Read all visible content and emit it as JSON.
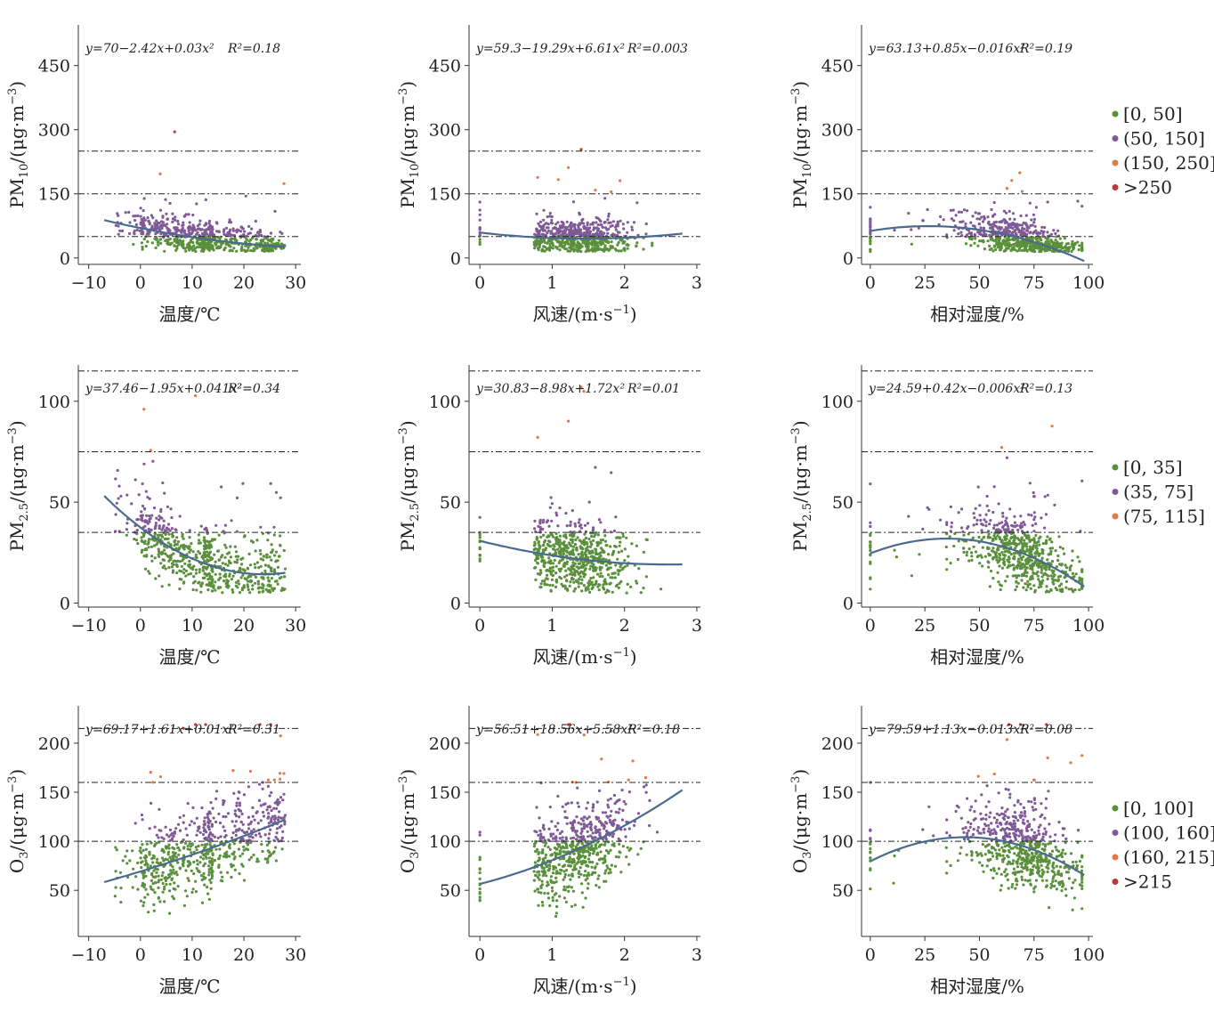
{
  "colors": {
    "green": "#5a8f3c",
    "purple": "#7f5a96",
    "orange": "#dd7a45",
    "red": "#b83a30",
    "fit": "#4a6a8f",
    "axis": "#333333"
  },
  "chart_data": {
    "type": "scatter",
    "rows": [
      {
        "pollutant": "PM10",
        "ylabel_main": "PM",
        "ylabel_sub": "10",
        "ylabel_unit": "/(μg·m",
        "ylabel_sup": "−3",
        "ylabel_close": ")",
        "ylim": [
          -15,
          545
        ],
        "yticks": [
          0,
          150,
          300,
          450
        ],
        "thresholds": [
          50,
          150,
          250
        ],
        "legend": [
          {
            "label": "[0, 50]",
            "color": "#5a8f3c"
          },
          {
            "label": "(50, 150]",
            "color": "#7f5a96"
          },
          {
            "label": "(150, 250]",
            "color": "#dd7a45"
          },
          {
            "label": ">250",
            "color": "#b83a30"
          }
        ],
        "panels": [
          {
            "var": "temp",
            "equation": "y=70−2.42x+0.03x²",
            "r2": "R²=0.18",
            "fit": [
              70,
              -2.42,
              0.03
            ]
          },
          {
            "var": "wind",
            "equation": "y=59.3−19.29x+6.61x²",
            "r2": "R²=0.003",
            "fit": [
              59.3,
              -19.29,
              6.61
            ]
          },
          {
            "var": "rh",
            "equation": "y=63.13+0.85x−0.016x²",
            "r2": "R²=0.19",
            "fit": [
              63.13,
              0.85,
              -0.016
            ]
          }
        ]
      },
      {
        "pollutant": "PM2.5",
        "ylabel_main": "PM",
        "ylabel_sub": "2.5",
        "ylabel_unit": "/(μg·m",
        "ylabel_sup": "−3",
        "ylabel_close": ")",
        "ylim": [
          -2,
          118
        ],
        "yticks": [
          0,
          50,
          100
        ],
        "thresholds": [
          35,
          75,
          115
        ],
        "legend": [
          {
            "label": "[0, 35]",
            "color": "#5a8f3c"
          },
          {
            "label": "(35, 75]",
            "color": "#7f5a96"
          },
          {
            "label": "(75, 115]",
            "color": "#dd7a45"
          }
        ],
        "panels": [
          {
            "var": "temp",
            "equation": "y=37.46−1.95x+0.041x²",
            "r2": "R²=0.34",
            "fit": [
              37.46,
              -1.95,
              0.041
            ]
          },
          {
            "var": "wind",
            "equation": "y=30.83−8.98x+1.72x²",
            "r2": "R²=0.01",
            "fit": [
              30.83,
              -8.98,
              1.72
            ]
          },
          {
            "var": "rh",
            "equation": "y=24.59+0.42x−0.006x²",
            "r2": "R²=0.13",
            "fit": [
              24.59,
              0.42,
              -0.006
            ]
          }
        ]
      },
      {
        "pollutant": "O3",
        "ylabel_main": "O",
        "ylabel_sub": "3",
        "ylabel_unit": "/(μg·m",
        "ylabel_sup": "−3",
        "ylabel_close": ")",
        "ylim": [
          3,
          238
        ],
        "yticks": [
          50,
          100,
          150,
          200
        ],
        "thresholds": [
          100,
          160,
          215
        ],
        "legend": [
          {
            "label": "[0, 100]",
            "color": "#5a8f3c"
          },
          {
            "label": "(100, 160]",
            "color": "#7f5a96"
          },
          {
            "label": "(160, 215]",
            "color": "#dd7a45"
          },
          {
            "label": ">215",
            "color": "#b83a30"
          }
        ],
        "panels": [
          {
            "var": "temp",
            "equation": "y=69.17+1.61x+0.01x²",
            "r2": "R²=0.31",
            "fit": [
              69.17,
              1.61,
              0.01
            ]
          },
          {
            "var": "wind",
            "equation": "y=56.51+18.56x+5.58x²",
            "r2": "R²=0.18",
            "fit": [
              56.51,
              18.56,
              5.58
            ]
          },
          {
            "var": "rh",
            "equation": "y=79.59+1.13x−0.013x²",
            "r2": "R²=0.08",
            "fit": [
              79.59,
              1.13,
              -0.013
            ]
          }
        ]
      }
    ],
    "xaxes": {
      "temp": {
        "label": "温度/℃",
        "xlim": [
          -12,
          31
        ],
        "ticks": [
          -10,
          0,
          10,
          20,
          30
        ],
        "tick_labels": [
          "−10",
          "0",
          "10",
          "20",
          "30"
        ],
        "range": [
          -7,
          28
        ]
      },
      "wind": {
        "label": "风速/(m·s",
        "label_sup": "−1",
        "label_close": ")",
        "xlim": [
          -0.15,
          3.05
        ],
        "ticks": [
          0,
          1,
          2,
          3
        ],
        "tick_labels": [
          "0",
          "1",
          "2",
          "3"
        ],
        "range": [
          0,
          2.8
        ]
      },
      "rh": {
        "label": "相对湿度/%",
        "xlim": [
          -4,
          102
        ],
        "ticks": [
          0,
          25,
          50,
          75,
          100
        ],
        "tick_labels": [
          "0",
          "25",
          "50",
          "75",
          "100"
        ],
        "range": [
          0,
          98
        ]
      }
    }
  }
}
